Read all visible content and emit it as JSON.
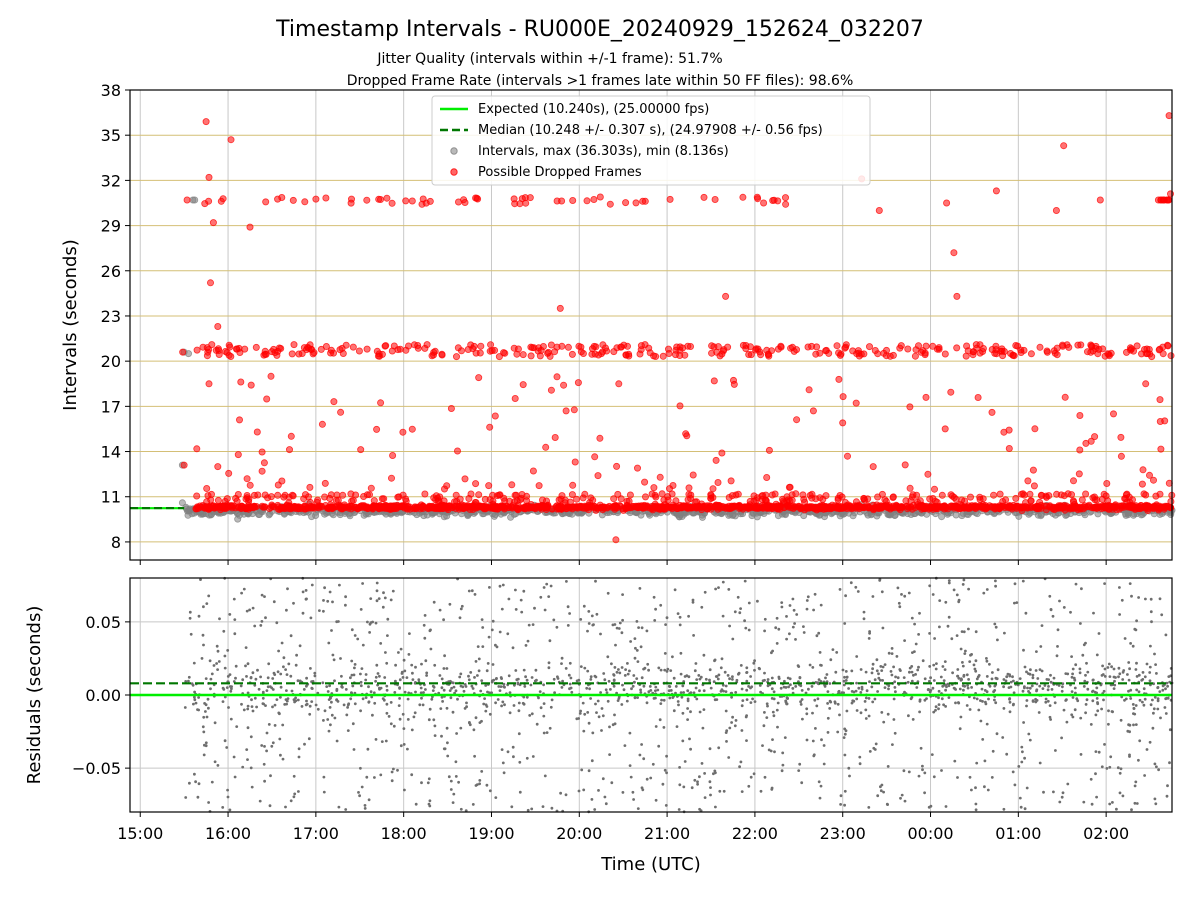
{
  "figure": {
    "title": "Timestamp Intervals - RU000E_20240929_152624_032207",
    "subtitle_1": "Jitter Quality (intervals within +/-1 frame): 51.7%",
    "subtitle_2": "Dropped Frame Rate (intervals >1 frames late within 50 FF files): 98.6%",
    "xlabel": "Time (UTC)"
  },
  "colors": {
    "expected": "#00ee00",
    "median": "#007700",
    "intervals": "#808080",
    "dropped": "#ff0000",
    "hgrid_top": "#d4bf76",
    "vgrid": "#c8c8c8",
    "residuals": "#6e6e6e"
  },
  "chart_data": [
    {
      "type": "scatter",
      "panel": "top",
      "ylabel": "Intervals (seconds)",
      "ylim": [
        6.8,
        38
      ],
      "yticks": [
        "8",
        "11",
        "14",
        "17",
        "20",
        "23",
        "26",
        "29",
        "32",
        "35",
        "38"
      ],
      "xlim": [
        "14:53",
        "02:45"
      ],
      "xticks": [
        "15:00",
        "16:00",
        "17:00",
        "18:00",
        "19:00",
        "20:00",
        "21:00",
        "22:00",
        "23:00",
        "00:00",
        "01:00",
        "02:00"
      ],
      "grid": true,
      "legend_placement": "upper-center",
      "legend": [
        "Expected (10.240s), (25.00000 fps)",
        "Median (10.248 +/- 0.307 s), (24.97908 +/- 0.56 fps)",
        "Intervals, max (36.303s), min (8.136s)",
        "Possible Dropped Frames"
      ],
      "expected_interval_s": 10.24,
      "median_interval_s": 10.248,
      "median_line_extent": [
        "14:53",
        "15:30"
      ],
      "interval_max_s": 36.303,
      "interval_min_s": 8.136,
      "time_span": [
        "15:30",
        "02:45"
      ],
      "clusters": {
        "main_band_s": [
          9.6,
          10.6
        ],
        "double_band_s": [
          20.3,
          21.1
        ],
        "triple_band_s": [
          30.4,
          30.9
        ]
      },
      "notable_points": [
        {
          "x": "15:45",
          "y": 35.9
        },
        {
          "x": "15:47",
          "y": 32.2
        },
        {
          "x": "15:48",
          "y": 25.2
        },
        {
          "x": "15:50",
          "y": 29.2
        },
        {
          "x": "15:53",
          "y": 22.3
        },
        {
          "x": "15:47",
          "y": 18.5
        },
        {
          "x": "15:53",
          "y": 13.0
        },
        {
          "x": "16:02",
          "y": 34.7
        },
        {
          "x": "16:15",
          "y": 28.9
        },
        {
          "x": "16:20",
          "y": 15.3
        },
        {
          "x": "16:13",
          "y": 12.2
        },
        {
          "x": "16:07",
          "y": 13.8
        },
        {
          "x": "19:47",
          "y": 23.5
        },
        {
          "x": "19:51",
          "y": 16.7
        },
        {
          "x": "21:40",
          "y": 24.3
        },
        {
          "x": "22:40",
          "y": 16.7
        },
        {
          "x": "22:37",
          "y": 18.1
        },
        {
          "x": "23:00",
          "y": 15.9
        },
        {
          "x": "23:13",
          "y": 32.1
        },
        {
          "x": "23:25",
          "y": 30.0
        },
        {
          "x": "00:11",
          "y": 30.5
        },
        {
          "x": "00:16",
          "y": 27.2
        },
        {
          "x": "00:18",
          "y": 24.3
        },
        {
          "x": "00:10",
          "y": 15.5
        },
        {
          "x": "00:45",
          "y": 31.3
        },
        {
          "x": "00:42",
          "y": 16.6
        },
        {
          "x": "01:26",
          "y": 30.0
        },
        {
          "x": "01:31",
          "y": 34.3
        },
        {
          "x": "01:32",
          "y": 17.6
        },
        {
          "x": "01:56",
          "y": 30.7
        },
        {
          "x": "02:05",
          "y": 16.5
        },
        {
          "x": "02:27",
          "y": 18.5
        },
        {
          "x": "02:43",
          "y": 36.3
        },
        {
          "x": "02:44",
          "y": 31.1
        },
        {
          "x": "01:42",
          "y": 14.1
        },
        {
          "x": "20:25",
          "y": 8.14
        },
        {
          "x": "15:30",
          "y": 13.1
        },
        {
          "x": "15:29",
          "y": 20.6
        },
        {
          "x": "15:32",
          "y": 30.7
        }
      ]
    },
    {
      "type": "scatter",
      "panel": "bottom",
      "ylabel": "Residuals (seconds)",
      "ylim": [
        -0.08,
        0.08
      ],
      "yticks": [
        "−0.05",
        "0.00",
        "0.05"
      ],
      "ytick_values": [
        -0.05,
        0.0,
        0.05
      ],
      "xlim": [
        "14:53",
        "02:45"
      ],
      "grid": true,
      "expected_line": 0.0,
      "median_line": 0.008,
      "residual_spread_s": [
        -0.08,
        0.08
      ],
      "residual_concentration_s": [
        -0.01,
        0.02
      ]
    }
  ]
}
